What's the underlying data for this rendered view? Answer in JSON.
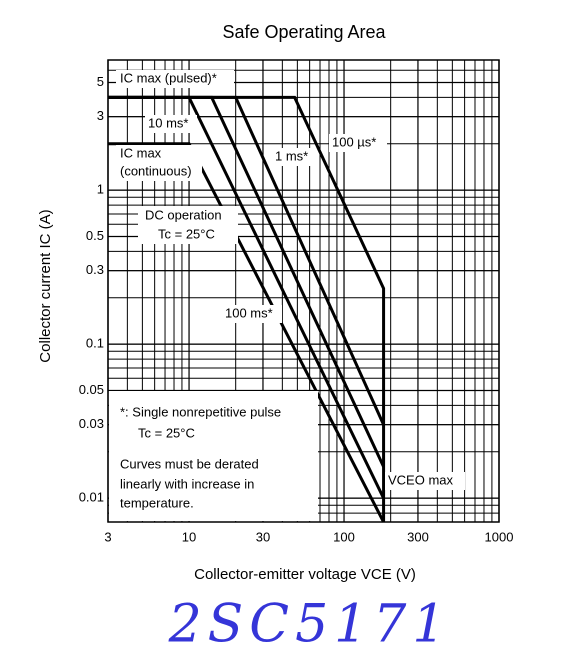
{
  "chart_data": {
    "type": "line",
    "title": "Safe Operating Area",
    "x_label": "Collector-emitter voltage VCE (V)",
    "y_label": "Collector current IC (A)",
    "log_x": true,
    "log_y": true,
    "grid": "minor",
    "xlim": [
      3,
      1000
    ],
    "ylim": [
      0.007,
      7
    ],
    "xticks": [
      3,
      10,
      30,
      100,
      300,
      1000
    ],
    "yticks": [
      5,
      3,
      1,
      0.5,
      0.3,
      0.1,
      0.05,
      0.03,
      0.01
    ],
    "series": [
      {
        "name": "100 µs*",
        "color": "#000000",
        "x": [
          3,
          48,
          180,
          180
        ],
        "values": [
          4,
          4,
          0.23,
          0.007
        ]
      },
      {
        "name": "1 ms*",
        "color": "#000000",
        "x": [
          3,
          20,
          180
        ],
        "values": [
          4,
          4,
          0.03
        ]
      },
      {
        "name": "10 ms*",
        "color": "#000000",
        "x": [
          3,
          14,
          180
        ],
        "values": [
          4,
          4,
          0.016
        ]
      },
      {
        "name": "100 ms*",
        "color": "#000000",
        "x": [
          3,
          10,
          180
        ],
        "values": [
          4,
          4,
          0.01
        ]
      },
      {
        "name": "DC operation",
        "color": "#000000",
        "x": [
          3,
          10,
          180
        ],
        "values": [
          2,
          2,
          0.007
        ]
      }
    ],
    "annotations": {
      "ic_pulsed": "IC max (pulsed)*",
      "ic_max": "IC max",
      "ic_continuous": "(continuous)",
      "dc_condition": "Tc = 25°C",
      "vceo": "VCEO max",
      "notes": [
        "*: Single nonrepetitive pulse",
        "Tc = 25°C",
        "Curves must be derated",
        "linearly with increase in",
        "temperature."
      ],
      "handwriting": "2SC5171"
    }
  }
}
